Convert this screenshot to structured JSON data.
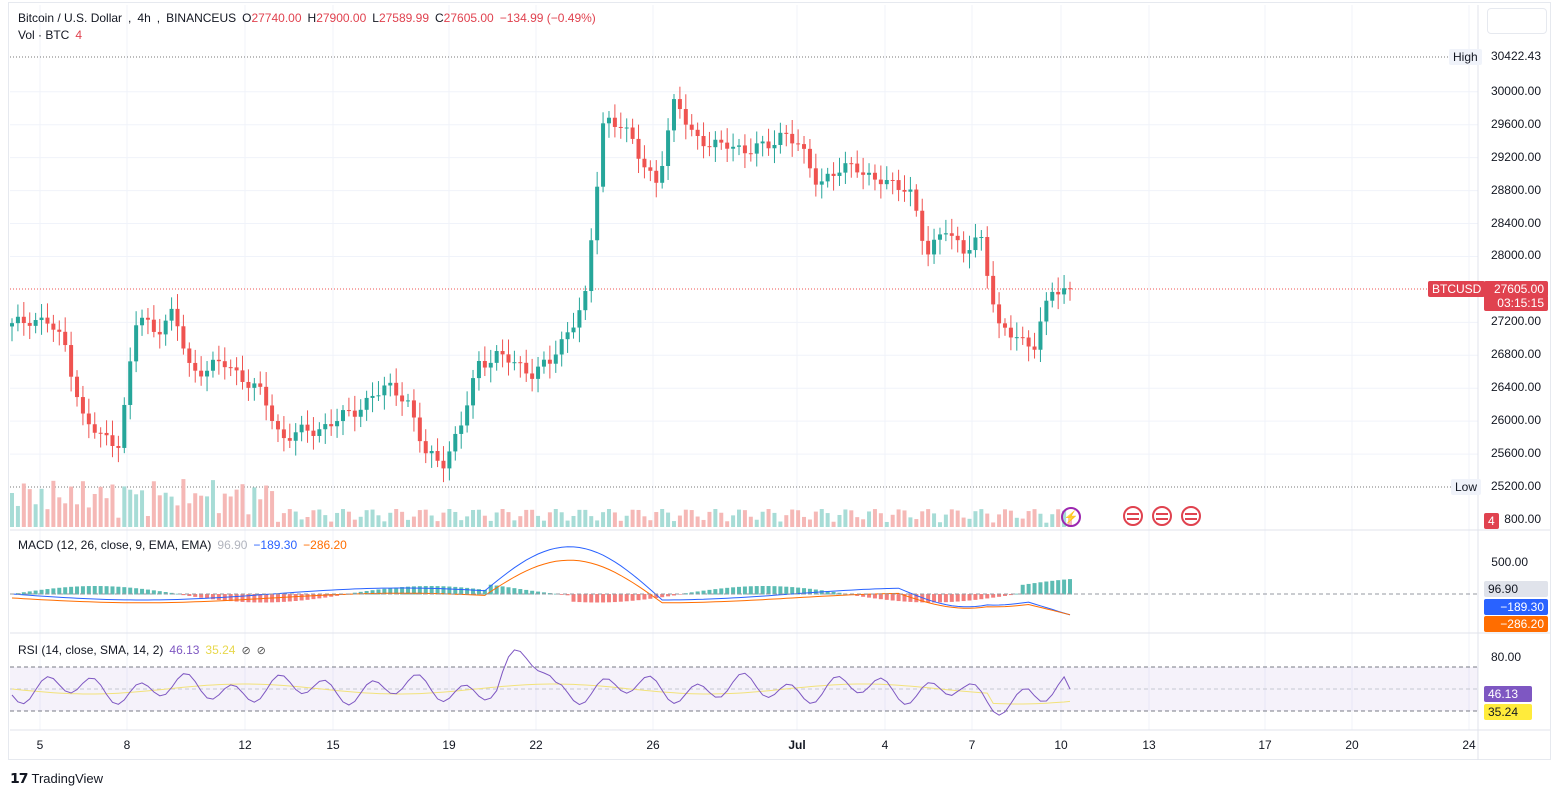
{
  "symbol": {
    "name": "Bitcoin / U.S. Dollar",
    "interval": "4h",
    "exchange": "BINANCEUS",
    "open_label": "O",
    "open": "27740.00",
    "high_label": "H",
    "high": "27900.00",
    "low_label": "L",
    "low": "27589.99",
    "close_label": "C",
    "close": "27605.00",
    "change": "−134.99 (−0.49%)",
    "vol_label": "Vol · BTC",
    "vol_value": "4"
  },
  "price_axis": {
    "ticks": [
      "30000.00",
      "29600.00",
      "29200.00",
      "28800.00",
      "28400.00",
      "28000.00",
      "27200.00",
      "26800.00",
      "26400.00",
      "26000.00",
      "25600.00"
    ],
    "tick_values": [
      30000,
      29600,
      29200,
      28800,
      28400,
      28000,
      27200,
      26800,
      26400,
      26000,
      25600
    ],
    "high_tag": "High",
    "high_value": "30422.43",
    "low_tag": "Low",
    "low_value": "25200.00",
    "current_symbol": "BTCUSD",
    "current_price": "27605.00",
    "countdown": "03:15:15",
    "vol_tag": "4",
    "vol_axis": "800.00"
  },
  "macd": {
    "label": "MACD (12, 26, close, 9, EMA, EMA)",
    "hist": "96.90",
    "macd": "−189.30",
    "signal": "−286.20",
    "axis": "500.00"
  },
  "rsi": {
    "label": "RSI (14, close, SMA, 14, 2)",
    "rsi": "46.13",
    "sma": "35.24",
    "axis_top": "80.00",
    "eye1": "⊘",
    "eye2": "⊘"
  },
  "time_axis": [
    "5",
    "8",
    "12",
    "15",
    "19",
    "22",
    "26",
    "Jul",
    "4",
    "7",
    "10",
    "13",
    "17",
    "20",
    "24"
  ],
  "footer": {
    "brand": "TradingView"
  },
  "colors": {
    "up": "#26a69a",
    "down": "#ef5350",
    "macd": "#2962ff",
    "signal": "#ff6d00",
    "rsi": "#7e57c2",
    "rsi_sma": "#ffeb3b"
  },
  "chart_data": {
    "type": "candlestick",
    "close_series": [
      27150,
      27250,
      27200,
      26900,
      26000,
      25800,
      25750,
      27300,
      27100,
      27300,
      26600,
      26650,
      26700,
      26500,
      26300,
      25800,
      25850,
      25900,
      26000,
      26100,
      26300,
      26400,
      26300,
      25600,
      25500,
      25900,
      26700,
      26800,
      26700,
      26600,
      26700,
      27100,
      27500,
      29700,
      29600,
      29200,
      28900,
      29900,
      29500,
      29300,
      29400,
      29250,
      29350,
      29500,
      29300,
      28900,
      29000,
      29150,
      28900,
      28900,
      28850,
      28000,
      28400,
      28000,
      28300,
      27100,
      27050,
      26900,
      27600,
      27605
    ],
    "price_range": [
      25200,
      30422.43
    ]
  }
}
